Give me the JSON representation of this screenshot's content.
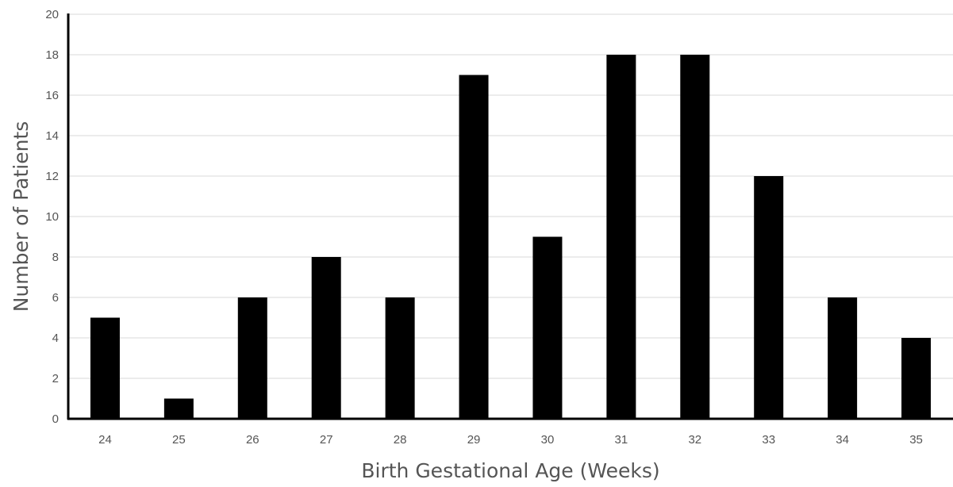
{
  "chart_data": {
    "type": "bar",
    "title": "",
    "xlabel": "Birth Gestational Age (Weeks)",
    "ylabel": "Number of Patients",
    "categories": [
      "24",
      "25",
      "26",
      "27",
      "28",
      "29",
      "30",
      "31",
      "32",
      "33",
      "34",
      "35"
    ],
    "values": [
      5,
      1,
      6,
      8,
      6,
      17,
      9,
      18,
      18,
      12,
      6,
      4
    ],
    "ylim": [
      0,
      20
    ],
    "yticks": [
      "0",
      "2",
      "4",
      "6",
      "8",
      "10",
      "12",
      "14",
      "16",
      "18",
      "20"
    ],
    "grid": true,
    "bar_color": "#000000",
    "grid_color": "#d9d9d9",
    "text_color": "#555555"
  }
}
